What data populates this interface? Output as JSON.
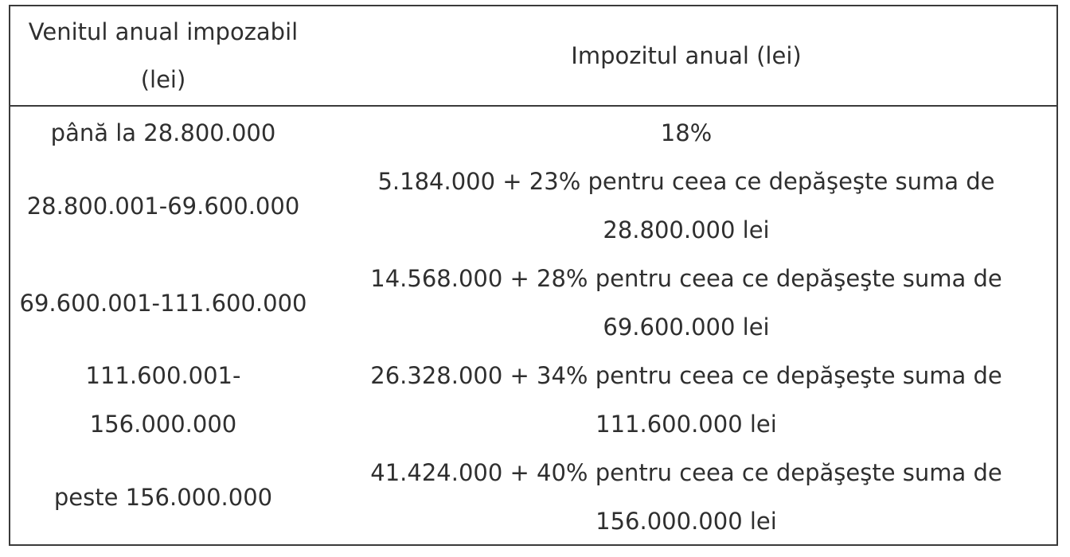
{
  "table": {
    "header": {
      "income_line1": "Venitul anual impozabil",
      "income_line2": "(lei)",
      "tax": "Impozitul anual (lei)"
    },
    "rows": [
      {
        "income_line1": "până la 28.800.000",
        "income_line2": "",
        "tax_line1": "18%",
        "tax_line2": ""
      },
      {
        "income_line1": "28.800.001-69.600.000",
        "income_line2": "",
        "tax_line1": "5.184.000 + 23% pentru ceea ce depăşeşte suma de",
        "tax_line2": "28.800.000 lei"
      },
      {
        "income_line1": "69.600.001-111.600.000",
        "income_line2": "",
        "tax_line1": "14.568.000 + 28% pentru ceea ce depăşeşte suma de",
        "tax_line2": "69.600.000 lei"
      },
      {
        "income_line1": "111.600.001-",
        "income_line2": "156.000.000",
        "tax_line1": "26.328.000 + 34% pentru ceea ce depăşeşte suma de",
        "tax_line2": "111.600.000 lei"
      },
      {
        "income_line1": "peste 156.000.000",
        "income_line2": "",
        "tax_line1": "41.424.000 + 40% pentru ceea ce depăşeşte suma de",
        "tax_line2": "156.000.000 lei"
      }
    ]
  }
}
